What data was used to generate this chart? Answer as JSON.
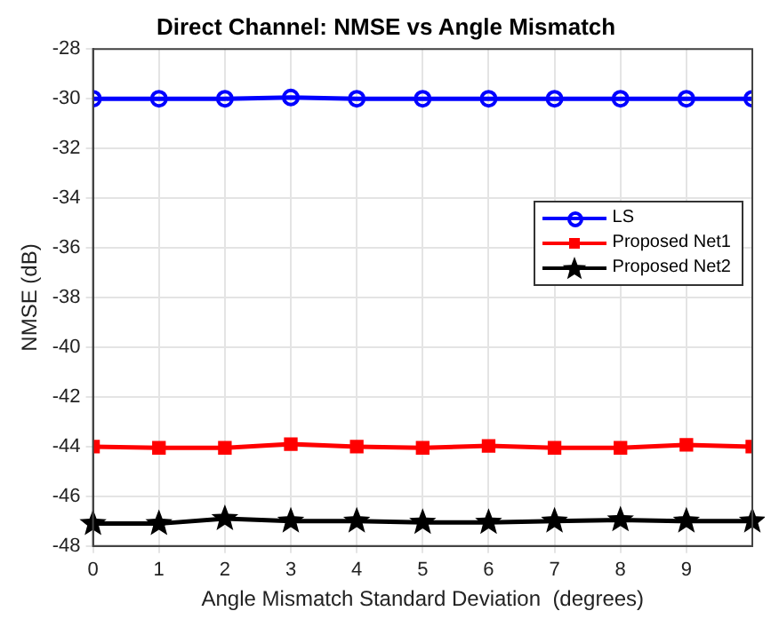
{
  "chart_data": {
    "type": "line",
    "title": "Direct Channel: NMSE vs Angle Mismatch",
    "xlabel": "Angle Mismatch Standard Deviation  (degrees)",
    "ylabel": "NMSE (dB)",
    "x": [
      0,
      1,
      2,
      3,
      4,
      5,
      6,
      7,
      8,
      9,
      10
    ],
    "series": [
      {
        "name": "LS",
        "color": "#0000ff",
        "marker": "circle",
        "values": [
          -30,
          -30,
          -30,
          -29.95,
          -30,
          -30,
          -30,
          -30,
          -30,
          -30,
          -30
        ]
      },
      {
        "name": "Proposed Net1",
        "color": "#ff0000",
        "marker": "square",
        "values": [
          -44,
          -44.05,
          -44.05,
          -43.9,
          -44,
          -44.05,
          -43.97,
          -44.05,
          -44.05,
          -43.93,
          -44
        ]
      },
      {
        "name": "Proposed Net2",
        "color": "#000000",
        "marker": "star",
        "values": [
          -47.1,
          -47.1,
          -46.9,
          -47,
          -47,
          -47.05,
          -47.05,
          -47,
          -46.95,
          -47,
          -47
        ]
      }
    ],
    "xlim": [
      0,
      10
    ],
    "xticks": [
      0,
      1,
      2,
      3,
      4,
      5,
      6,
      7,
      8,
      9
    ],
    "ylim": [
      -48,
      -28
    ],
    "yticks": [
      -48,
      -46,
      -44,
      -42,
      -40,
      -38,
      -36,
      -34,
      -32,
      -30,
      -28
    ],
    "grid": true,
    "legend": "right",
    "line_style": "solid"
  }
}
